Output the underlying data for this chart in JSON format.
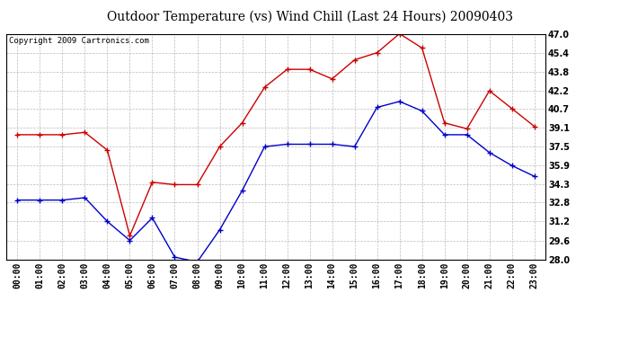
{
  "title": "Outdoor Temperature (vs) Wind Chill (Last 24 Hours) 20090403",
  "copyright": "Copyright 2009 Cartronics.com",
  "hours": [
    "00:00",
    "01:00",
    "02:00",
    "03:00",
    "04:00",
    "05:00",
    "06:00",
    "07:00",
    "08:00",
    "09:00",
    "10:00",
    "11:00",
    "12:00",
    "13:00",
    "14:00",
    "15:00",
    "16:00",
    "17:00",
    "18:00",
    "19:00",
    "20:00",
    "21:00",
    "22:00",
    "23:00"
  ],
  "temp": [
    38.5,
    38.5,
    38.5,
    38.7,
    37.2,
    30.0,
    34.5,
    34.3,
    34.3,
    37.5,
    39.5,
    42.5,
    44.0,
    44.0,
    43.2,
    44.8,
    45.4,
    47.0,
    45.8,
    39.5,
    39.0,
    42.2,
    40.7,
    39.2
  ],
  "wind_chill": [
    33.0,
    33.0,
    33.0,
    33.2,
    31.2,
    29.6,
    31.5,
    28.2,
    27.8,
    30.5,
    33.8,
    37.5,
    37.7,
    37.7,
    37.7,
    37.5,
    40.8,
    41.3,
    40.5,
    38.5,
    38.5,
    37.0,
    35.9,
    35.0
  ],
  "temp_color": "#cc0000",
  "wind_chill_color": "#0000cc",
  "ylim_min": 28.0,
  "ylim_max": 47.0,
  "yticks": [
    28.0,
    29.6,
    31.2,
    32.8,
    34.3,
    35.9,
    37.5,
    39.1,
    40.7,
    42.2,
    43.8,
    45.4,
    47.0
  ],
  "background_color": "#ffffff",
  "plot_bg_color": "#ffffff",
  "grid_color": "#bbbbbb",
  "title_fontsize": 10,
  "tick_fontsize": 7,
  "copyright_fontsize": 6.5
}
